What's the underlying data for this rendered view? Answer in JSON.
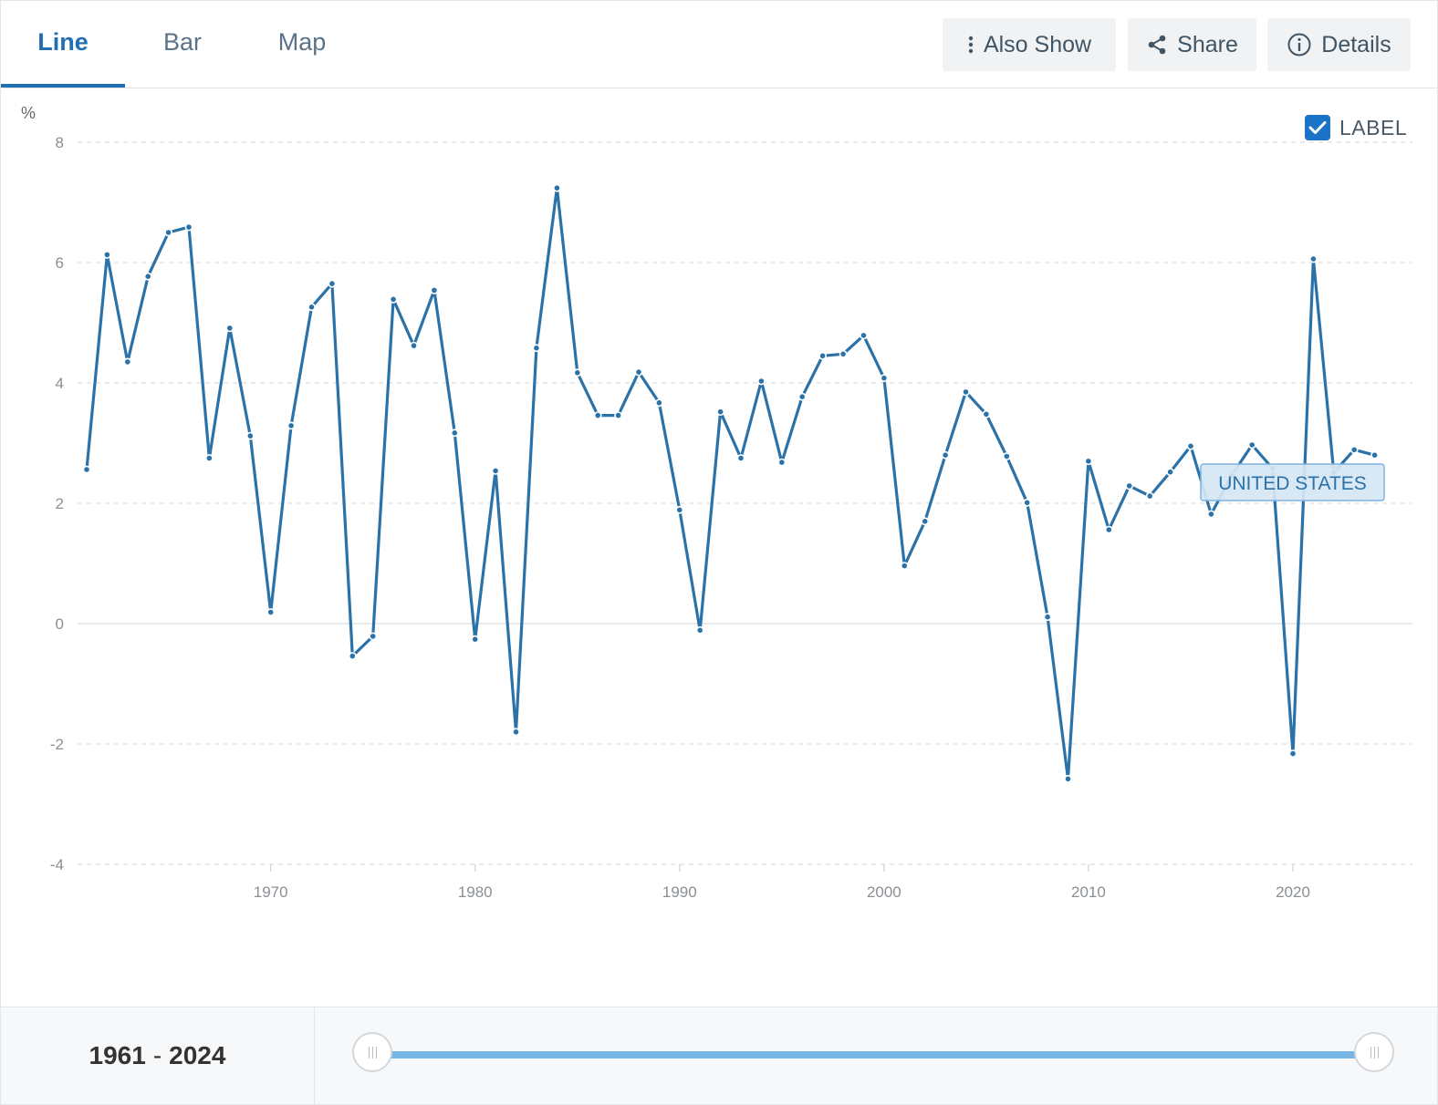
{
  "tabs": [
    {
      "label": "Line",
      "active": true
    },
    {
      "label": "Bar",
      "active": false
    },
    {
      "label": "Map",
      "active": false
    }
  ],
  "toolbar": {
    "also_show": "Also Show",
    "share": "Share",
    "details": "Details"
  },
  "label_toggle": {
    "text": "LABEL",
    "checked": true
  },
  "footer": {
    "range_start": "1961",
    "range_sep": "-",
    "range_end": "2024"
  },
  "colors": {
    "accent": "#1f6fb2",
    "line": "#2a72a8",
    "track": "#75b6e5",
    "checkbox": "#1a73c6"
  },
  "icons": {
    "also_show": "vertical-dots-icon",
    "share": "share-icon",
    "details": "info-icon",
    "checkbox": "checkmark-icon"
  },
  "chart_data": {
    "type": "line",
    "ylabel": "%",
    "ylim": [
      -4,
      8
    ],
    "yticks": [
      8,
      6,
      4,
      2,
      0,
      -2,
      -4
    ],
    "xticks": [
      1970,
      1980,
      1990,
      2000,
      2010,
      2020
    ],
    "xlim": [
      1961,
      2024
    ],
    "grid": true,
    "series_label": "UNITED STATES",
    "series": [
      {
        "name": "UNITED STATES",
        "x": [
          1961,
          1962,
          1963,
          1964,
          1965,
          1966,
          1967,
          1968,
          1969,
          1970,
          1971,
          1972,
          1973,
          1974,
          1975,
          1976,
          1977,
          1978,
          1979,
          1980,
          1981,
          1982,
          1983,
          1984,
          1985,
          1986,
          1987,
          1988,
          1989,
          1990,
          1991,
          1992,
          1993,
          1994,
          1995,
          1996,
          1997,
          1998,
          1999,
          2000,
          2001,
          2002,
          2003,
          2004,
          2005,
          2006,
          2007,
          2008,
          2009,
          2010,
          2011,
          2012,
          2013,
          2014,
          2015,
          2016,
          2017,
          2018,
          2019,
          2020,
          2021,
          2022,
          2023,
          2024
        ],
        "values": [
          2.56,
          6.13,
          4.35,
          5.77,
          6.5,
          6.59,
          2.75,
          4.91,
          3.12,
          0.19,
          3.29,
          5.26,
          5.65,
          -0.54,
          -0.21,
          5.39,
          4.62,
          5.54,
          3.17,
          -0.26,
          2.54,
          -1.8,
          4.58,
          7.24,
          4.17,
          3.46,
          3.46,
          4.18,
          3.67,
          1.89,
          -0.11,
          3.52,
          2.75,
          4.03,
          2.68,
          3.77,
          4.45,
          4.48,
          4.79,
          4.08,
          0.96,
          1.7,
          2.8,
          3.85,
          3.48,
          2.78,
          2.01,
          0.11,
          -2.58,
          2.7,
          1.56,
          2.29,
          2.12,
          2.52,
          2.95,
          1.82,
          2.46,
          2.97,
          2.58,
          -2.16,
          6.06,
          2.51,
          2.89,
          2.8
        ]
      }
    ]
  }
}
